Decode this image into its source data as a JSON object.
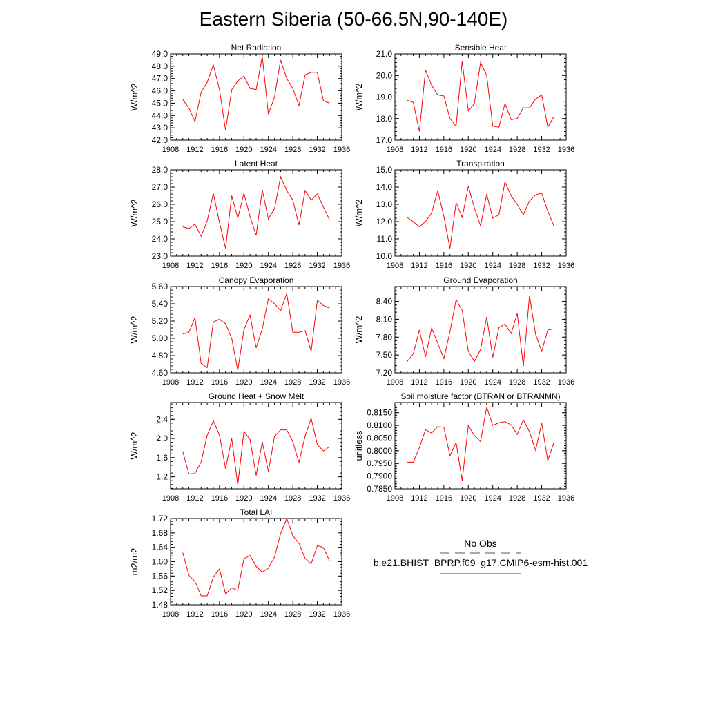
{
  "title": "Eastern Siberia (50-66.5N,90-140E)",
  "chart_data": [
    {
      "type": "line",
      "title": "Net Radiation",
      "ylabel": "W/m^2",
      "xlim": [
        1908,
        1936
      ],
      "ylim": [
        42.0,
        49.0
      ],
      "xticks": [
        1908,
        1912,
        1916,
        1920,
        1924,
        1928,
        1932,
        1936
      ],
      "yticks": [
        "42.0",
        "43.0",
        "44.0",
        "45.0",
        "46.0",
        "47.0",
        "48.0",
        "49.0"
      ],
      "x": [
        1910,
        1911,
        1912,
        1913,
        1914,
        1915,
        1916,
        1917,
        1918,
        1919,
        1920,
        1921,
        1922,
        1923,
        1924,
        1925,
        1926,
        1927,
        1928,
        1929,
        1930,
        1931,
        1932,
        1933,
        1934
      ],
      "series": [
        {
          "color": "#ff0000",
          "values": [
            45.3,
            44.6,
            43.5,
            45.9,
            46.7,
            48.1,
            46.1,
            42.8,
            46.1,
            46.8,
            47.2,
            46.2,
            46.1,
            48.8,
            44.1,
            45.5,
            48.5,
            47.0,
            46.2,
            44.8,
            47.3,
            47.5,
            47.5,
            45.2,
            45.0
          ]
        }
      ]
    },
    {
      "type": "line",
      "title": "Sensible Heat",
      "ylabel": "W/m^2",
      "xlim": [
        1908,
        1936
      ],
      "ylim": [
        17.0,
        21.0
      ],
      "xticks": [
        1908,
        1912,
        1916,
        1920,
        1924,
        1928,
        1932,
        1936
      ],
      "yticks": [
        "17.0",
        "18.0",
        "19.0",
        "20.0",
        "21.0"
      ],
      "x": [
        1910,
        1911,
        1912,
        1913,
        1914,
        1915,
        1916,
        1917,
        1918,
        1919,
        1920,
        1921,
        1922,
        1923,
        1924,
        1925,
        1926,
        1927,
        1928,
        1929,
        1930,
        1931,
        1932,
        1933,
        1934
      ],
      "series": [
        {
          "color": "#ff0000",
          "values": [
            18.85,
            18.75,
            17.4,
            20.25,
            19.55,
            19.1,
            19.05,
            18.0,
            17.65,
            20.65,
            18.35,
            18.7,
            20.6,
            20.0,
            17.65,
            17.6,
            18.7,
            17.95,
            18.0,
            18.5,
            18.5,
            18.9,
            19.1,
            17.6,
            18.1
          ]
        }
      ]
    },
    {
      "type": "line",
      "title": "Latent Heat",
      "ylabel": "W/m^2",
      "xlim": [
        1908,
        1936
      ],
      "ylim": [
        23.0,
        28.0
      ],
      "xticks": [
        1908,
        1912,
        1916,
        1920,
        1924,
        1928,
        1932,
        1936
      ],
      "yticks": [
        "23.0",
        "24.0",
        "25.0",
        "26.0",
        "27.0",
        "28.0"
      ],
      "x": [
        1910,
        1911,
        1912,
        1913,
        1914,
        1915,
        1916,
        1917,
        1918,
        1919,
        1920,
        1921,
        1922,
        1923,
        1924,
        1925,
        1926,
        1927,
        1928,
        1929,
        1930,
        1931,
        1932,
        1933,
        1934
      ],
      "series": [
        {
          "color": "#ff0000",
          "values": [
            24.7,
            24.6,
            24.85,
            24.15,
            25.05,
            26.65,
            24.95,
            23.45,
            26.5,
            25.2,
            26.65,
            25.3,
            24.2,
            26.85,
            25.15,
            25.75,
            27.6,
            26.8,
            26.25,
            24.8,
            26.8,
            26.25,
            26.6,
            25.85,
            25.1
          ]
        }
      ]
    },
    {
      "type": "line",
      "title": "Transpiration",
      "ylabel": "W/m^2",
      "xlim": [
        1908,
        1936
      ],
      "ylim": [
        10.0,
        15.0
      ],
      "xticks": [
        1908,
        1912,
        1916,
        1920,
        1924,
        1928,
        1932,
        1936
      ],
      "yticks": [
        "10.0",
        "11.0",
        "12.0",
        "13.0",
        "14.0",
        "15.0"
      ],
      "x": [
        1910,
        1911,
        1912,
        1913,
        1914,
        1915,
        1916,
        1917,
        1918,
        1919,
        1920,
        1921,
        1922,
        1923,
        1924,
        1925,
        1926,
        1927,
        1928,
        1929,
        1930,
        1931,
        1932,
        1933,
        1934
      ],
      "series": [
        {
          "color": "#ff0000",
          "values": [
            12.25,
            12.0,
            11.7,
            12.0,
            12.5,
            13.8,
            12.3,
            10.45,
            13.1,
            12.25,
            14.05,
            12.8,
            11.75,
            13.6,
            12.2,
            12.4,
            14.3,
            13.5,
            13.0,
            12.4,
            13.2,
            13.55,
            13.65,
            12.6,
            11.75
          ]
        }
      ]
    },
    {
      "type": "line",
      "title": "Canopy Evaporation",
      "ylabel": "W/m^2",
      "xlim": [
        1908,
        1936
      ],
      "ylim": [
        4.6,
        5.6
      ],
      "xticks": [
        1908,
        1912,
        1916,
        1920,
        1924,
        1928,
        1932,
        1936
      ],
      "yticks": [
        "4.60",
        "4.80",
        "5.00",
        "5.20",
        "5.40",
        "5.60"
      ],
      "x": [
        1910,
        1911,
        1912,
        1913,
        1914,
        1915,
        1916,
        1917,
        1918,
        1919,
        1920,
        1921,
        1922,
        1923,
        1924,
        1925,
        1926,
        1927,
        1928,
        1929,
        1930,
        1931,
        1932,
        1933,
        1934
      ],
      "series": [
        {
          "color": "#ff0000",
          "values": [
            5.05,
            5.07,
            5.24,
            4.71,
            4.66,
            5.19,
            5.22,
            5.17,
            5.0,
            4.63,
            5.1,
            5.27,
            4.89,
            5.11,
            5.46,
            5.4,
            5.32,
            5.52,
            5.07,
            5.07,
            5.09,
            4.85,
            5.44,
            5.38,
            5.35
          ]
        }
      ]
    },
    {
      "type": "line",
      "title": "Ground Evaporation",
      "ylabel": "W/m^2",
      "xlim": [
        1908,
        1936
      ],
      "ylim": [
        7.2,
        8.65
      ],
      "xticks": [
        1908,
        1912,
        1916,
        1920,
        1924,
        1928,
        1932,
        1936
      ],
      "yticks": [
        "7.20",
        "7.50",
        "7.80",
        "8.10",
        "8.40"
      ],
      "x": [
        1910,
        1911,
        1912,
        1913,
        1914,
        1915,
        1916,
        1917,
        1918,
        1919,
        1920,
        1921,
        1922,
        1923,
        1924,
        1925,
        1926,
        1927,
        1928,
        1929,
        1930,
        1931,
        1932,
        1933,
        1934
      ],
      "series": [
        {
          "color": "#ff0000",
          "values": [
            7.39,
            7.52,
            7.92,
            7.47,
            7.95,
            7.7,
            7.44,
            7.89,
            8.43,
            8.25,
            7.56,
            7.39,
            7.59,
            8.14,
            7.46,
            7.96,
            8.02,
            7.86,
            8.2,
            7.31,
            8.5,
            7.85,
            7.56,
            7.92,
            7.94
          ]
        }
      ]
    },
    {
      "type": "line",
      "title": "Ground Heat + Snow Melt",
      "ylabel": "W/m^2",
      "xlim": [
        1908,
        1936
      ],
      "ylim": [
        0.95,
        2.75
      ],
      "xticks": [
        1908,
        1912,
        1916,
        1920,
        1924,
        1928,
        1932,
        1936
      ],
      "yticks": [
        "1.2",
        "1.6",
        "2.0",
        "2.4"
      ],
      "x": [
        1910,
        1911,
        1912,
        1913,
        1914,
        1915,
        1916,
        1917,
        1918,
        1919,
        1920,
        1921,
        1922,
        1923,
        1924,
        1925,
        1926,
        1927,
        1928,
        1929,
        1930,
        1931,
        1932,
        1933,
        1934
      ],
      "series": [
        {
          "color": "#ff0000",
          "values": [
            1.73,
            1.26,
            1.27,
            1.51,
            2.07,
            2.37,
            2.07,
            1.37,
            2.0,
            1.03,
            2.15,
            1.98,
            1.23,
            1.93,
            1.31,
            2.04,
            2.18,
            2.18,
            1.93,
            1.5,
            2.05,
            2.42,
            1.87,
            1.74,
            1.83
          ]
        }
      ]
    },
    {
      "type": "line",
      "title": "Soil moisture factor (BTRAN or BTRANMN)",
      "ylabel": "unitless",
      "xlim": [
        1908,
        1936
      ],
      "ylim": [
        0.785,
        0.819
      ],
      "xticks": [
        1908,
        1912,
        1916,
        1920,
        1924,
        1928,
        1932,
        1936
      ],
      "yticks": [
        "0.7850",
        "0.7900",
        "0.7950",
        "0.8000",
        "0.8050",
        "0.8100",
        "0.8150"
      ],
      "x": [
        1910,
        1911,
        1912,
        1913,
        1914,
        1915,
        1916,
        1917,
        1918,
        1919,
        1920,
        1921,
        1922,
        1923,
        1924,
        1925,
        1926,
        1927,
        1928,
        1929,
        1930,
        1931,
        1932,
        1933,
        1934
      ],
      "series": [
        {
          "color": "#ff0000",
          "values": [
            0.7955,
            0.7955,
            0.8012,
            0.8083,
            0.807,
            0.8095,
            0.8093,
            0.798,
            0.8033,
            0.7882,
            0.81,
            0.806,
            0.8036,
            0.8172,
            0.81,
            0.811,
            0.8115,
            0.8102,
            0.8064,
            0.8122,
            0.8075,
            0.8002,
            0.8108,
            0.7961,
            0.8033
          ]
        }
      ]
    },
    {
      "type": "line",
      "title": "Total LAI",
      "ylabel": "m2/m2",
      "xlim": [
        1908,
        1936
      ],
      "ylim": [
        1.48,
        1.72
      ],
      "xticks": [
        1908,
        1912,
        1916,
        1920,
        1924,
        1928,
        1932,
        1936
      ],
      "yticks": [
        "1.48",
        "1.52",
        "1.56",
        "1.60",
        "1.64",
        "1.68",
        "1.72"
      ],
      "x": [
        1910,
        1911,
        1912,
        1913,
        1914,
        1915,
        1916,
        1917,
        1918,
        1919,
        1920,
        1921,
        1922,
        1923,
        1924,
        1925,
        1926,
        1927,
        1928,
        1929,
        1930,
        1931,
        1932,
        1933,
        1934
      ],
      "series": [
        {
          "color": "#ff0000",
          "values": [
            1.625,
            1.562,
            1.545,
            1.505,
            1.505,
            1.557,
            1.58,
            1.51,
            1.527,
            1.52,
            1.608,
            1.617,
            1.587,
            1.571,
            1.582,
            1.613,
            1.678,
            1.72,
            1.672,
            1.651,
            1.609,
            1.594,
            1.645,
            1.639,
            1.602
          ]
        }
      ]
    }
  ],
  "legend": {
    "obs_label": "No Obs",
    "obs_color": "#555555",
    "model_label": "b.e21.BHIST_BPRP.f09_g17.CMIP6-esm-hist.001",
    "model_color": "#ff0000"
  }
}
